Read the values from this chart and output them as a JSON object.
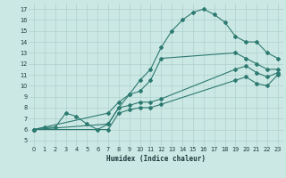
{
  "xlabel": "Humidex (Indice chaleur)",
  "bg_color": "#cce8e5",
  "line_color": "#2d7a70",
  "grid_color": "#aed0cc",
  "xlim": [
    -0.5,
    23.5
  ],
  "ylim": [
    4.5,
    17.5
  ],
  "xticks": [
    0,
    1,
    2,
    3,
    4,
    5,
    6,
    7,
    8,
    9,
    10,
    11,
    12,
    13,
    14,
    15,
    16,
    17,
    18,
    19,
    20,
    21,
    22,
    23
  ],
  "yticks": [
    5,
    6,
    7,
    8,
    9,
    10,
    11,
    12,
    13,
    14,
    15,
    16,
    17
  ],
  "lines": [
    {
      "x": [
        0,
        1,
        2,
        3,
        4,
        5,
        6,
        7,
        8,
        9,
        10,
        11,
        12,
        13,
        14,
        15,
        16,
        17,
        18,
        19,
        20,
        21,
        22,
        23
      ],
      "y": [
        6,
        6.2,
        6.2,
        7.5,
        7.2,
        6.5,
        6,
        6.5,
        8,
        9.2,
        10.5,
        11.5,
        13.5,
        15,
        16,
        16.7,
        17,
        16.5,
        15.8,
        14.5,
        14,
        14,
        13,
        12.5
      ],
      "marker": "D",
      "ms": 2.0
    },
    {
      "x": [
        0,
        7,
        8,
        9,
        10,
        11,
        12,
        19,
        20,
        21,
        22,
        23
      ],
      "y": [
        6,
        7.5,
        8.5,
        9.2,
        9.5,
        10.5,
        12.5,
        13,
        12.5,
        12,
        11.5,
        11.5
      ],
      "marker": "D",
      "ms": 2.0
    },
    {
      "x": [
        0,
        7,
        8,
        9,
        10,
        11,
        12,
        19,
        20,
        21,
        22,
        23
      ],
      "y": [
        6,
        6.5,
        8.0,
        8.2,
        8.5,
        8.5,
        8.8,
        11.5,
        11.8,
        11.2,
        10.8,
        11.2
      ],
      "marker": "D",
      "ms": 2.0
    },
    {
      "x": [
        0,
        7,
        8,
        9,
        10,
        11,
        12,
        19,
        20,
        21,
        22,
        23
      ],
      "y": [
        6,
        6.0,
        7.5,
        7.8,
        8.0,
        8.0,
        8.3,
        10.5,
        10.8,
        10.2,
        10.0,
        11.0
      ],
      "marker": "D",
      "ms": 2.0
    }
  ]
}
